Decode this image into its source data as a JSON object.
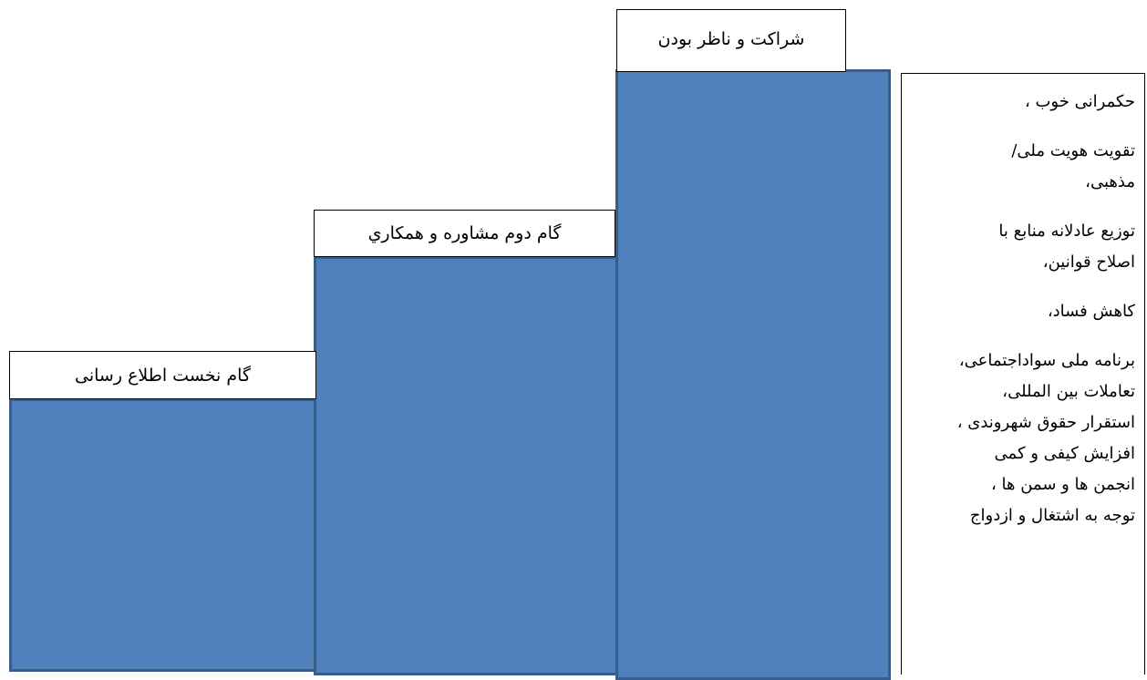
{
  "steps": [
    {
      "label": "گام نخست اطلاع رسانی"
    },
    {
      "label": "گام دوم مشاوره و  همکاري"
    },
    {
      "label": "شراکت و ناظر بودن"
    }
  ],
  "goals": {
    "lines": [
      "حکمرانی خوب ،",
      "",
      "تقویت هویت ملی/",
      "مذهبی،",
      "",
      " توزیع عادلانه منابع با",
      "اصلاح قوانین،",
      "",
      "کاهش فساد،",
      "",
      "برنامه ملی سواداجتماعی،",
      "تعاملات بین المللی،",
      "استقرار حقوق شهروندی ،",
      "افزایش کیفی و کمی",
      "انجمن ها و سمن ها ،",
      "توجه به اشتغال و ازدواج"
    ]
  },
  "colors": {
    "step_fill": "#4f81bd",
    "step_border": "#385d8a"
  }
}
